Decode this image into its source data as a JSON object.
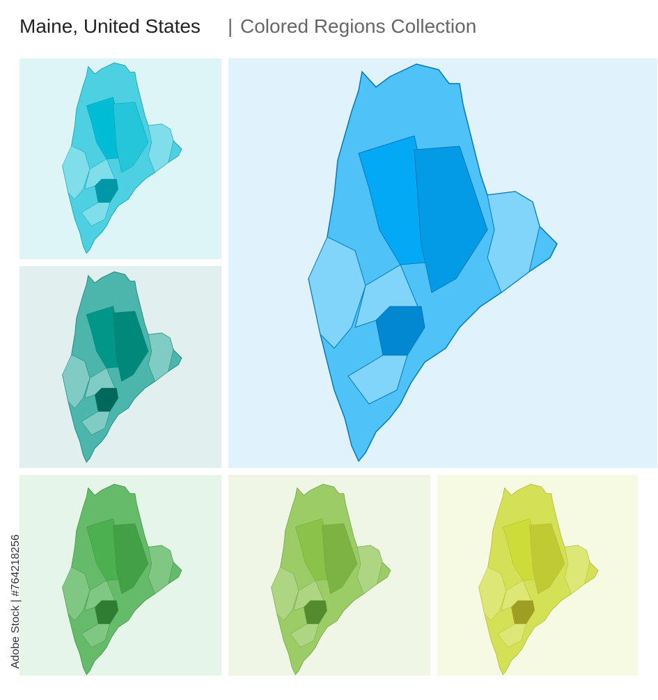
{
  "header": {
    "title": "Maine, United States",
    "separator": "|",
    "subtitle": "Colored Regions Collection"
  },
  "watermark": "Adobe Stock | #764218256"
}
